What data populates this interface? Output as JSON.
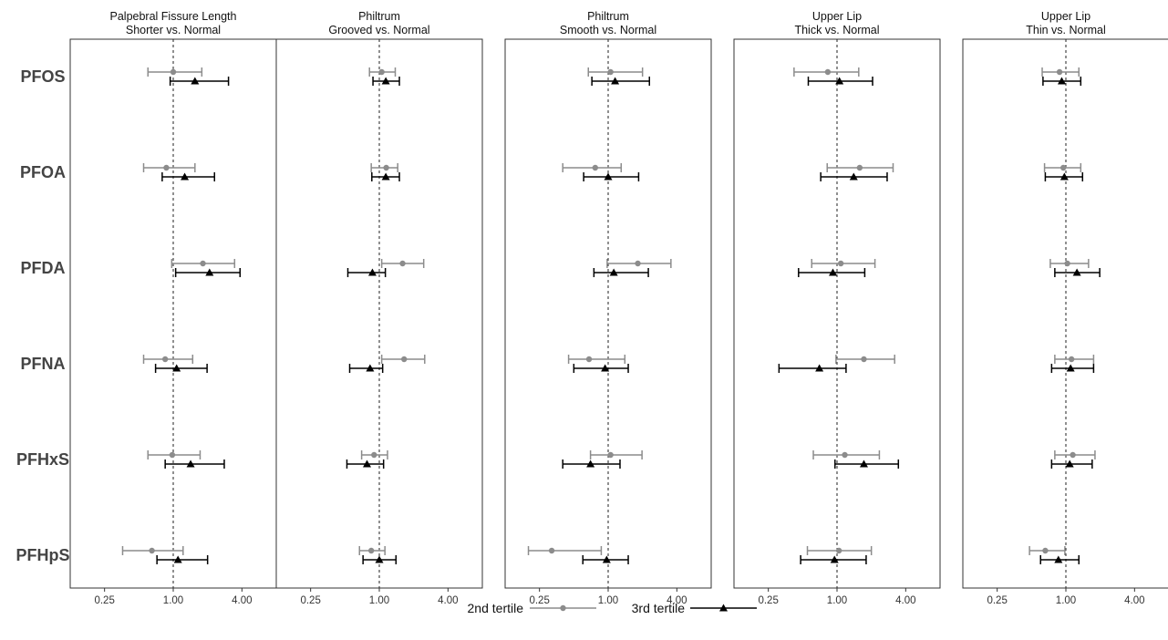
{
  "chart_data": {
    "type": "forest",
    "x_scale": "log2",
    "xlim": [
      0.125,
      8
    ],
    "x_ticks": [
      0.25,
      1.0,
      4.0
    ],
    "x_tick_labels": [
      "0.25",
      "1.00",
      "4.00"
    ],
    "reference_line": 1.0,
    "grid": false,
    "legend_position": "bottom",
    "series_styles": {
      "2nd tertile": {
        "color": "#8c8c8c",
        "marker": "circle"
      },
      "3rd tertile": {
        "color": "#000000",
        "marker": "triangle"
      }
    },
    "rows": [
      "PFOS",
      "PFOA",
      "PFDA",
      "PFNA",
      "PFHxS",
      "PFHpS"
    ],
    "panels": [
      {
        "title": "Palpebral Fissure Length Shorter vs. Normal",
        "title_lines": [
          "Palpebral Fissure Length",
          "Shorter vs. Normal"
        ],
        "series": [
          {
            "name": "2nd tertile",
            "est": [
              1.0,
              0.87,
              1.82,
              0.85,
              0.98,
              0.65
            ],
            "lo": [
              0.6,
              0.55,
              0.97,
              0.55,
              0.6,
              0.36
            ],
            "hi": [
              1.78,
              1.55,
              3.45,
              1.48,
              1.72,
              1.22
            ]
          },
          {
            "name": "3rd tertile",
            "est": [
              1.55,
              1.26,
              2.08,
              1.07,
              1.42,
              1.1
            ],
            "lo": [
              0.94,
              0.8,
              1.05,
              0.7,
              0.85,
              0.72
            ],
            "hi": [
              3.05,
              2.3,
              3.85,
              1.98,
              2.8,
              2.0
            ]
          }
        ]
      },
      {
        "title": "Philtrum Grooved vs. Normal",
        "title_lines": [
          "Philtrum",
          "Grooved vs. Normal"
        ],
        "series": [
          {
            "name": "2nd tertile",
            "est": [
              1.05,
              1.15,
              1.6,
              1.65,
              0.9,
              0.85
            ],
            "lo": [
              0.82,
              0.85,
              1.05,
              1.05,
              0.7,
              0.67
            ],
            "hi": [
              1.38,
              1.45,
              2.45,
              2.5,
              1.18,
              1.12
            ]
          },
          {
            "name": "3rd tertile",
            "est": [
              1.14,
              1.14,
              0.87,
              0.83,
              0.78,
              1.0
            ],
            "lo": [
              0.88,
              0.86,
              0.53,
              0.55,
              0.52,
              0.72
            ],
            "hi": [
              1.5,
              1.5,
              1.13,
              1.07,
              1.09,
              1.4
            ]
          }
        ]
      },
      {
        "title": "Philtrum Smooth vs. Normal",
        "title_lines": [
          "Philtrum",
          "Smooth vs. Normal"
        ],
        "series": [
          {
            "name": "2nd tertile",
            "est": [
              1.05,
              0.77,
              1.82,
              0.68,
              1.05,
              0.32
            ],
            "lo": [
              0.67,
              0.4,
              0.98,
              0.45,
              0.7,
              0.2
            ],
            "hi": [
              2.0,
              1.3,
              3.55,
              1.4,
              1.98,
              0.87
            ]
          },
          {
            "name": "3rd tertile",
            "est": [
              1.15,
              1.0,
              1.12,
              0.94,
              0.7,
              0.97
            ],
            "lo": [
              0.72,
              0.61,
              0.75,
              0.5,
              0.4,
              0.6
            ],
            "hi": [
              2.3,
              1.85,
              2.25,
              1.5,
              1.27,
              1.5
            ]
          }
        ]
      },
      {
        "title": "Upper Lip Thick vs. Normal",
        "title_lines": [
          "Upper Lip",
          "Thick vs. Normal"
        ],
        "series": [
          {
            "name": "2nd tertile",
            "est": [
              0.83,
              1.58,
              1.08,
              1.72,
              1.17,
              1.04
            ],
            "lo": [
              0.42,
              0.82,
              0.6,
              0.98,
              0.62,
              0.55
            ],
            "hi": [
              1.55,
              3.1,
              2.15,
              3.2,
              2.35,
              2.0
            ]
          },
          {
            "name": "3rd tertile",
            "est": [
              1.05,
              1.4,
              0.92,
              0.7,
              1.72,
              0.95
            ],
            "lo": [
              0.56,
              0.72,
              0.46,
              0.31,
              0.96,
              0.48
            ],
            "hi": [
              2.05,
              2.75,
              1.75,
              1.2,
              3.45,
              1.8
            ]
          }
        ]
      },
      {
        "title": "Upper Lip Thin vs. Normal",
        "title_lines": [
          "Upper Lip",
          "Thin vs. Normal"
        ],
        "series": [
          {
            "name": "2nd tertile",
            "est": [
              0.88,
              0.95,
              1.03,
              1.12,
              1.15,
              0.66
            ],
            "lo": [
              0.62,
              0.65,
              0.73,
              0.8,
              0.8,
              0.48
            ],
            "hi": [
              1.3,
              1.35,
              1.58,
              1.75,
              1.8,
              0.98
            ]
          },
          {
            "name": "3rd tertile",
            "est": [
              0.92,
              0.97,
              1.25,
              1.1,
              1.08,
              0.86
            ],
            "lo": [
              0.63,
              0.66,
              0.8,
              0.75,
              0.75,
              0.6
            ],
            "hi": [
              1.35,
              1.4,
              1.98,
              1.75,
              1.7,
              1.3
            ]
          }
        ]
      }
    ],
    "legend": [
      {
        "label": "2nd tertile",
        "color": "#8c8c8c",
        "marker": "circle"
      },
      {
        "label": "3rd tertile",
        "color": "#000000",
        "marker": "triangle"
      }
    ]
  }
}
